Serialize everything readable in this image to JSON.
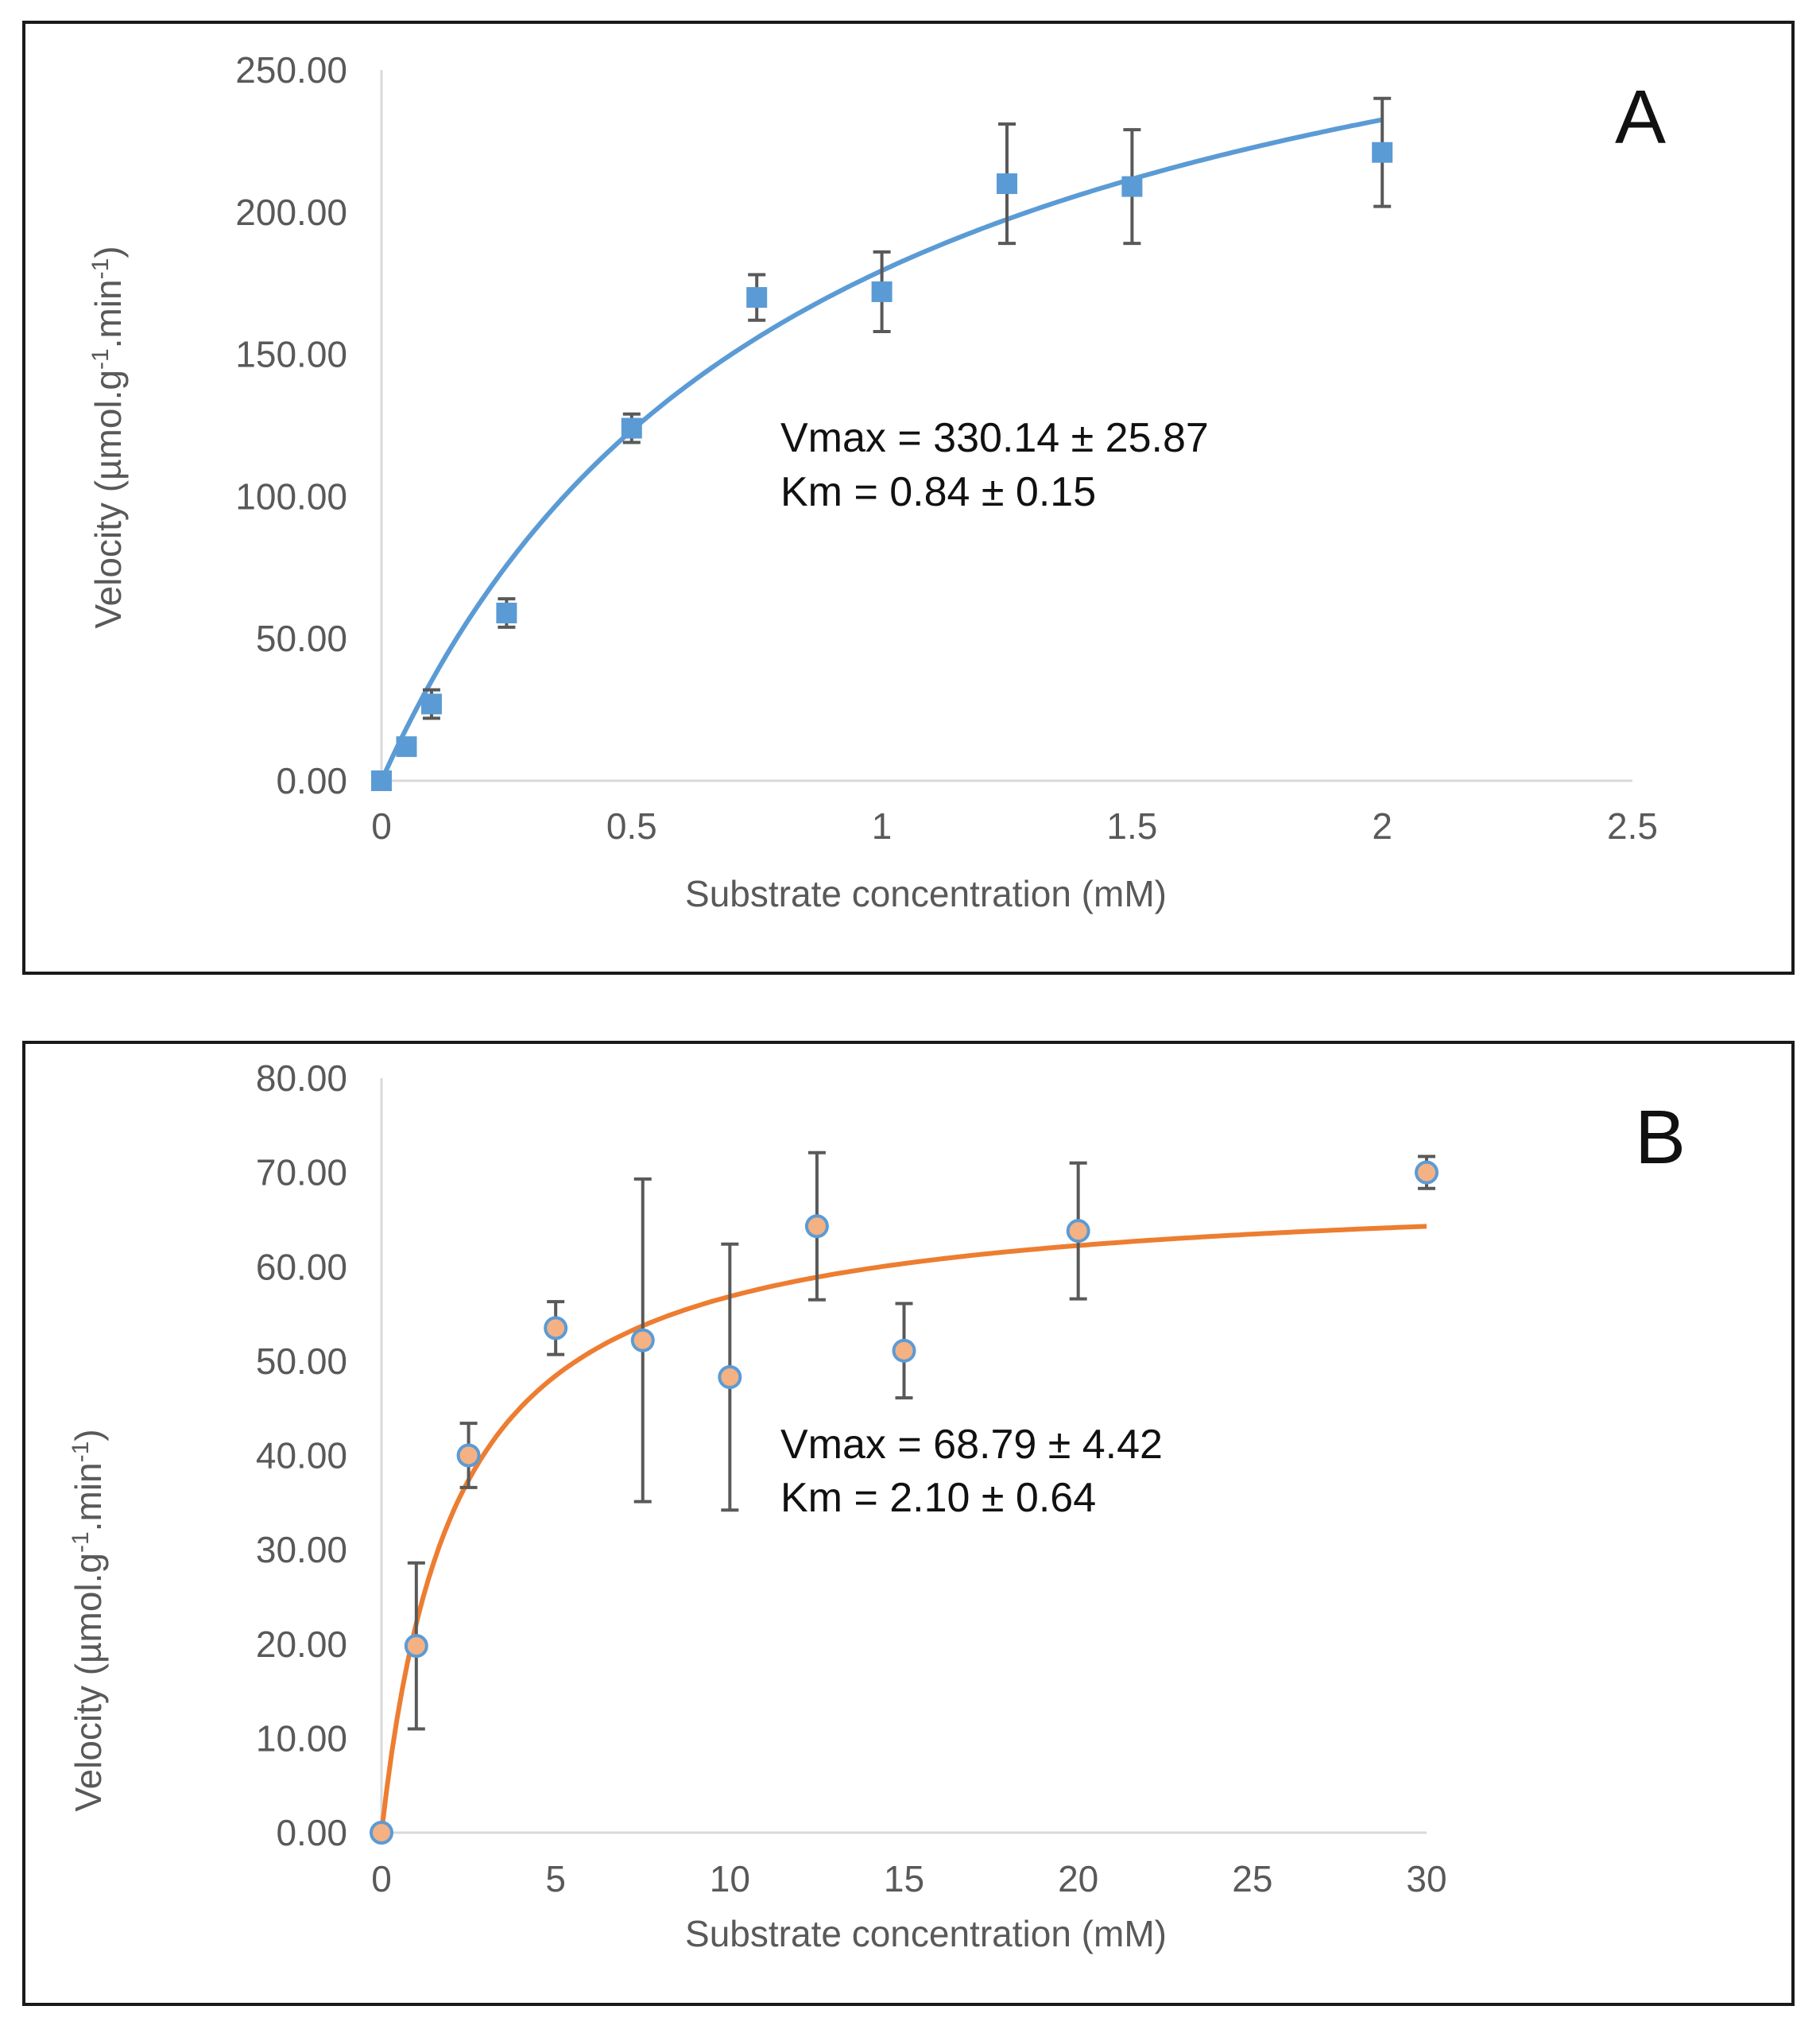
{
  "chart_data": [
    {
      "panel_label": "A",
      "type": "scatter",
      "xlabel": "Substrate concentration (mM)",
      "ylabel": "Velocity (µmol.g-1.min-1)",
      "ylabel_parts": {
        "pre": "Velocity (µmol.g",
        "sup1": "-1",
        "mid": ".min",
        "sup2": "-1",
        "post": ")"
      },
      "xlim": [
        0,
        2.5
      ],
      "ylim": [
        0,
        250
      ],
      "xticks": [
        0,
        0.5,
        1,
        1.5,
        2,
        2.5
      ],
      "xtick_labels": [
        "0",
        "0.5",
        "1",
        "1.5",
        "2",
        "2.5"
      ],
      "yticks": [
        0,
        50,
        100,
        150,
        200,
        250
      ],
      "ytick_labels": [
        "0.00",
        "50.00",
        "100.00",
        "150.00",
        "200.00",
        "250.00"
      ],
      "series": [
        {
          "name": "data",
          "marker": "square",
          "x": [
            0,
            0.05,
            0.1,
            0.25,
            0.5,
            0.75,
            1,
            1.25,
            1.5,
            2
          ],
          "y": [
            0,
            12,
            27,
            59,
            124,
            170,
            172,
            210,
            209,
            221
          ],
          "error": [
            0,
            2,
            5,
            5,
            5,
            8,
            14,
            21,
            20,
            19
          ]
        }
      ],
      "fit": {
        "model": "michaelis-menten",
        "vmax": 330.14,
        "km": 0.84,
        "x_range": [
          0,
          2
        ],
        "color": "#5b9bd5"
      },
      "marker_color": "#5b9bd5",
      "annotation": [
        "Vmax = 330.14 ± 25.87",
        "Km = 0.84 ± 0.15"
      ]
    },
    {
      "panel_label": "B",
      "type": "scatter",
      "xlabel": "Substrate concentration (mM)",
      "ylabel": "Velocity (µmol.g-1.min-1)",
      "ylabel_parts": {
        "pre": "Velocity (µmol.g",
        "sup1": "-1",
        "mid": ".min",
        "sup2": "-1",
        "post": ")"
      },
      "xlim": [
        0,
        30
      ],
      "ylim": [
        0,
        80
      ],
      "xticks": [
        0,
        5,
        10,
        15,
        20,
        25,
        30
      ],
      "xtick_labels": [
        "0",
        "5",
        "10",
        "15",
        "20",
        "25",
        "30"
      ],
      "yticks": [
        0,
        10,
        20,
        30,
        40,
        50,
        60,
        70,
        80
      ],
      "ytick_labels": [
        "0.00",
        "10.00",
        "20.00",
        "30.00",
        "40.00",
        "50.00",
        "60.00",
        "70.00",
        "80.00"
      ],
      "series": [
        {
          "name": "data",
          "marker": "circle",
          "x": [
            0,
            1,
            2.5,
            5,
            7.5,
            10,
            12.5,
            15,
            20,
            30
          ],
          "y": [
            0,
            19.8,
            40,
            53.5,
            52.2,
            48.3,
            64.3,
            51.1,
            63.8,
            70
          ],
          "error": [
            0,
            8.8,
            3.4,
            2.8,
            17.1,
            14.1,
            7.8,
            5,
            7.2,
            1.7
          ]
        }
      ],
      "fit": {
        "model": "michaelis-menten",
        "vmax": 68.79,
        "km": 2.1,
        "x_range": [
          0,
          30
        ],
        "color": "#ed7d31"
      },
      "marker_color": "#f4b183",
      "marker_edge_color": "#5b9bd5",
      "annotation": [
        "Vmax = 68.79 ± 4.42",
        "Km = 2.10 ± 0.64"
      ]
    }
  ]
}
